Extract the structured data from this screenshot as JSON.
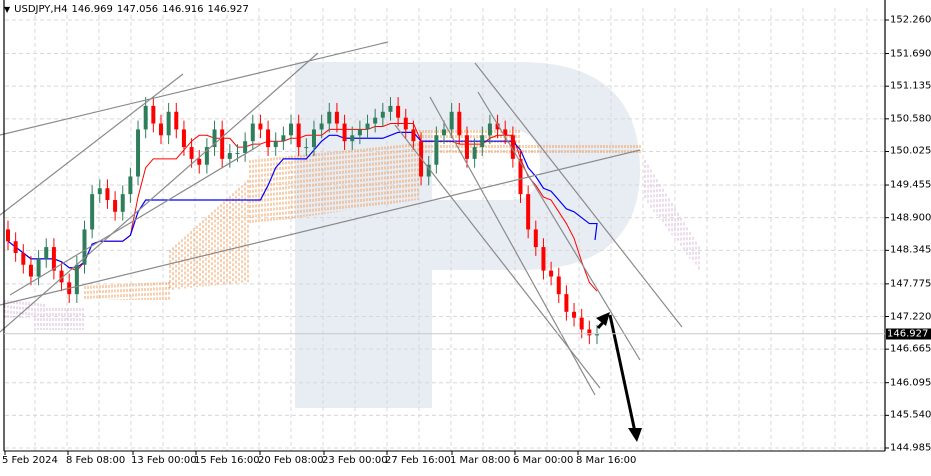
{
  "header": {
    "symbol": "USDJPY,H4",
    "open": "146.969",
    "high": "147.056",
    "low": "146.916",
    "close": "146.927"
  },
  "current_price": "146.927",
  "colors": {
    "bull": "#2e7d5b",
    "bear": "#ff0000",
    "tenkan": "#ff0000",
    "kijun": "#0000ff",
    "cloud_up": "#f0a060",
    "cloud_down": "#d8b8d8",
    "trendline": "#8a8a8a",
    "arrow": "#000000",
    "grid": "#d8d8d8",
    "watermark": "#e8ecf3"
  },
  "chart_data": {
    "type": "candlestick",
    "title": "USDJPY,H4",
    "ylim": [
      144.985,
      152.5
    ],
    "y_ticks": [
      "152.260",
      "151.690",
      "151.135",
      "150.580",
      "150.025",
      "149.455",
      "148.900",
      "148.345",
      "147.775",
      "147.220",
      "146.665",
      "146.095",
      "145.540",
      "144.985"
    ],
    "x_ticks": [
      "5 Feb 2024",
      "8 Feb 08:00",
      "13 Feb 00:00",
      "15 Feb 16:00",
      "20 Feb 08:00",
      "23 Feb 00:00",
      "27 Feb 16:00",
      "1 Mar 08:00",
      "6 Mar 00:00",
      "8 Mar 16:00"
    ],
    "indicators": [
      "Ichimoku Kinko Hyo (Tenkan-sen red, Kijun-sen blue, Kumo cloud dotted)"
    ],
    "annotations": [
      "Multiple grey trendlines (ascending channel and descending fan)",
      "Black forecast arrow: small bounce up to ~147.2 then decline toward ~145.0"
    ],
    "last_ohlc": {
      "open": 146.969,
      "high": 147.056,
      "low": 146.916,
      "close": 146.927
    },
    "approx_closes": [
      148.5,
      148.3,
      148.1,
      147.9,
      148.2,
      148.4,
      148.0,
      147.8,
      147.6,
      148.1,
      148.7,
      149.3,
      149.4,
      149.2,
      149.0,
      149.3,
      149.6,
      150.4,
      150.8,
      150.5,
      150.3,
      150.7,
      150.4,
      150.1,
      149.9,
      149.8,
      150.1,
      150.4,
      149.9,
      150.0,
      150.0,
      150.2,
      150.5,
      150.4,
      150.1,
      150.2,
      150.3,
      150.5,
      150.1,
      150.1,
      150.4,
      150.5,
      150.7,
      150.5,
      150.2,
      150.3,
      150.4,
      150.5,
      150.6,
      150.7,
      150.8,
      150.6,
      150.4,
      150.2,
      149.6,
      149.8,
      150.3,
      150.4,
      150.7,
      150.3,
      149.9,
      150.1,
      150.3,
      150.5,
      150.4,
      150.3,
      149.9,
      149.3,
      148.7,
      148.4,
      148.0,
      147.9,
      147.6,
      147.3,
      147.2,
      147.0,
      146.9,
      146.93
    ]
  }
}
